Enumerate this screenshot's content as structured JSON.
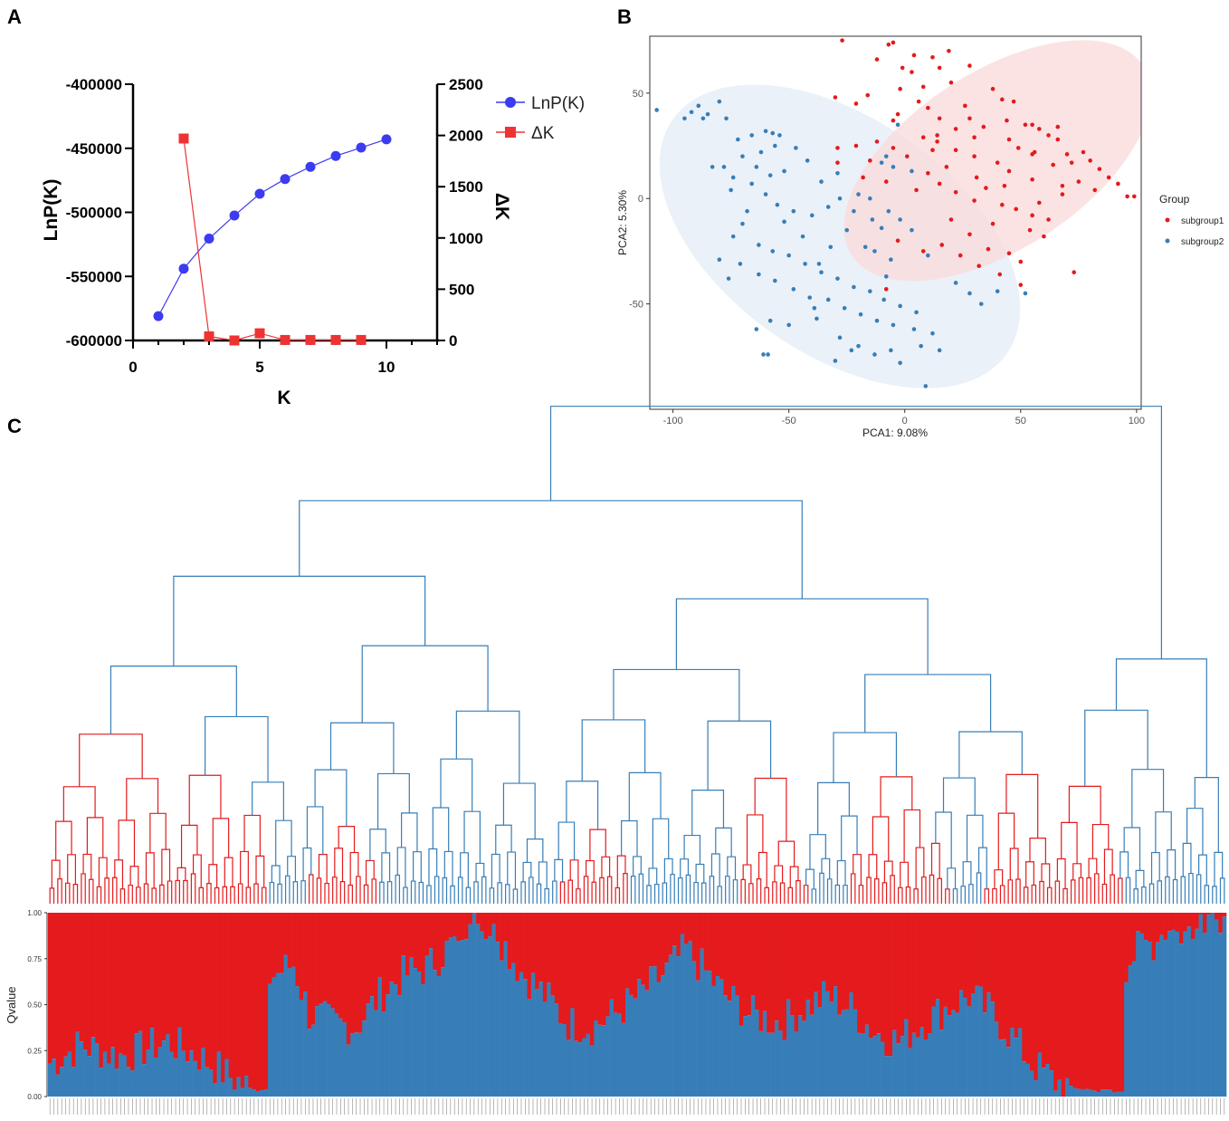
{
  "panels": {
    "a": "A",
    "b": "B",
    "c": "C"
  },
  "colors": {
    "lnp": "#3b3bf0",
    "dk": "#ee3333",
    "red": "#e41a1c",
    "blue": "#377eb8",
    "ellipse_red": "#fadadb",
    "ellipse_blue": "#e3ecf5"
  },
  "chart_data": [
    {
      "id": "panel-a",
      "type": "line",
      "xlabel": "K",
      "ylabel_left": "LnP(K)",
      "ylabel_right": "ΔK",
      "xlim": [
        0,
        12
      ],
      "xticks": [
        0,
        5,
        10
      ],
      "ylim_left": [
        -600000,
        -400000
      ],
      "yticks_left": [
        -400000,
        -450000,
        -500000,
        -550000,
        -600000
      ],
      "ylim_right": [
        0,
        2500
      ],
      "yticks_right": [
        2500,
        2000,
        1500,
        1000,
        500,
        0
      ],
      "series": [
        {
          "name": "LnP(K)",
          "axis": "left",
          "marker": "circle",
          "x": [
            1,
            2,
            3,
            4,
            5,
            6,
            7,
            8,
            9,
            10
          ],
          "values": [
            -581000,
            -544000,
            -520500,
            -502500,
            -485500,
            -474000,
            -464500,
            -456000,
            -449500,
            -443000
          ]
        },
        {
          "name": "ΔK",
          "axis": "right",
          "marker": "square",
          "x": [
            2,
            3,
            4,
            5,
            6,
            7,
            8,
            9
          ],
          "values": [
            1970,
            40,
            0,
            70,
            5,
            5,
            5,
            5
          ]
        }
      ]
    },
    {
      "id": "panel-b",
      "type": "scatter",
      "xlabel": "PCA1: 9.08%",
      "ylabel": "PCA2: 5.30%",
      "xlim": [
        -110,
        102
      ],
      "ylim": [
        -100,
        77
      ],
      "xticks": [
        -100,
        -50,
        0,
        50,
        100
      ],
      "yticks": [
        50,
        0,
        -50
      ],
      "legend_title": "Group",
      "legend": [
        "subgroup1",
        "subgroup2"
      ],
      "groups": [
        {
          "name": "subgroup1",
          "color": "#e41a1c",
          "ellipse": {
            "cx": 40,
            "cy": 18,
            "rx": 75,
            "ry": 42,
            "angle_deg": 33
          },
          "points": [
            [
              -27,
              75
            ],
            [
              -7,
              73
            ],
            [
              -5,
              74
            ],
            [
              4,
              68
            ],
            [
              12,
              67
            ],
            [
              19,
              70
            ],
            [
              28,
              63
            ],
            [
              15,
              62
            ],
            [
              -1,
              62
            ],
            [
              3,
              60
            ],
            [
              8,
              53
            ],
            [
              20,
              55
            ],
            [
              -12,
              66
            ],
            [
              38,
              52
            ],
            [
              42,
              47
            ],
            [
              47,
              46
            ],
            [
              26,
              44
            ],
            [
              10,
              43
            ],
            [
              -16,
              49
            ],
            [
              -21,
              45
            ],
            [
              -30,
              48
            ],
            [
              -3,
              40
            ],
            [
              15,
              38
            ],
            [
              22,
              33
            ],
            [
              34,
              34
            ],
            [
              -5,
              37
            ],
            [
              8,
              29
            ],
            [
              14,
              27
            ],
            [
              30,
              29
            ],
            [
              45,
              28
            ],
            [
              52,
              35
            ],
            [
              55,
              35
            ],
            [
              58,
              33
            ],
            [
              62,
              30
            ],
            [
              66,
              28
            ],
            [
              49,
              24
            ],
            [
              55,
              21
            ],
            [
              70,
              21
            ],
            [
              72,
              17
            ],
            [
              80,
              18
            ],
            [
              84,
              14
            ],
            [
              88,
              10
            ],
            [
              96,
              1
            ],
            [
              99,
              1
            ],
            [
              75,
              8
            ],
            [
              68,
              6
            ],
            [
              55,
              9
            ],
            [
              45,
              13
            ],
            [
              40,
              17
            ],
            [
              30,
              20
            ],
            [
              22,
              23
            ],
            [
              12,
              23
            ],
            [
              1,
              20
            ],
            [
              -5,
              24
            ],
            [
              -12,
              27
            ],
            [
              -21,
              25
            ],
            [
              -29,
              17
            ],
            [
              -18,
              10
            ],
            [
              -8,
              8
            ],
            [
              5,
              4
            ],
            [
              15,
              7
            ],
            [
              22,
              3
            ],
            [
              30,
              -1
            ],
            [
              35,
              5
            ],
            [
              42,
              -3
            ],
            [
              48,
              -5
            ],
            [
              55,
              -8
            ],
            [
              62,
              -10
            ],
            [
              38,
              -12
            ],
            [
              28,
              -17
            ],
            [
              16,
              -22
            ],
            [
              8,
              -25
            ],
            [
              -3,
              -20
            ],
            [
              24,
              -27
            ],
            [
              32,
              -32
            ],
            [
              41,
              -36
            ],
            [
              50,
              -41
            ],
            [
              73,
              -35
            ],
            [
              45,
              -26
            ],
            [
              60,
              -18
            ],
            [
              54,
              -15
            ],
            [
              -8,
              -43
            ],
            [
              -29,
              24
            ],
            [
              14,
              30
            ],
            [
              28,
              38
            ],
            [
              18,
              15
            ],
            [
              10,
              12
            ],
            [
              56,
              22
            ],
            [
              64,
              16
            ],
            [
              82,
              4
            ],
            [
              92,
              7
            ],
            [
              50,
              -30
            ],
            [
              36,
              -24
            ],
            [
              20,
              -10
            ],
            [
              -15,
              18
            ],
            [
              6,
              46
            ],
            [
              31,
              10
            ],
            [
              43,
              6
            ],
            [
              58,
              -2
            ],
            [
              68,
              2
            ],
            [
              44,
              37
            ],
            [
              66,
              34
            ],
            [
              77,
              22
            ],
            [
              -2,
              52
            ]
          ]
        },
        {
          "name": "subgroup2",
          "color": "#377eb8",
          "ellipse": {
            "cx": -28,
            "cy": -18,
            "rx": 88,
            "ry": 56,
            "angle_deg": -35
          },
          "points": [
            [
              -107,
              42
            ],
            [
              -95,
              38
            ],
            [
              -92,
              41
            ],
            [
              -89,
              44
            ],
            [
              -85,
              40
            ],
            [
              -80,
              46
            ],
            [
              -77,
              38
            ],
            [
              -87,
              38
            ],
            [
              -72,
              28
            ],
            [
              -66,
              30
            ],
            [
              -60,
              32
            ],
            [
              -57,
              31
            ],
            [
              -54,
              30
            ],
            [
              -56,
              25
            ],
            [
              -62,
              22
            ],
            [
              -70,
              20
            ],
            [
              -64,
              15
            ],
            [
              -58,
              11
            ],
            [
              -52,
              13
            ],
            [
              -74,
              10
            ],
            [
              -78,
              15
            ],
            [
              -83,
              15
            ],
            [
              -75,
              4
            ],
            [
              -66,
              7
            ],
            [
              -60,
              2
            ],
            [
              -55,
              -3
            ],
            [
              -48,
              -6
            ],
            [
              -40,
              -8
            ],
            [
              -33,
              -4
            ],
            [
              -28,
              0
            ],
            [
              -22,
              -6
            ],
            [
              -14,
              -10
            ],
            [
              -7,
              -6
            ],
            [
              -2,
              -10
            ],
            [
              3,
              -15
            ],
            [
              -68,
              -6
            ],
            [
              -74,
              -18
            ],
            [
              -63,
              -22
            ],
            [
              -57,
              -25
            ],
            [
              -50,
              -27
            ],
            [
              -43,
              -31
            ],
            [
              -36,
              -35
            ],
            [
              -29,
              -38
            ],
            [
              -22,
              -42
            ],
            [
              -15,
              -44
            ],
            [
              -9,
              -48
            ],
            [
              -2,
              -51
            ],
            [
              5,
              -54
            ],
            [
              -71,
              -31
            ],
            [
              -76,
              -38
            ],
            [
              -63,
              -36
            ],
            [
              -56,
              -39
            ],
            [
              -48,
              -43
            ],
            [
              -41,
              -47
            ],
            [
              -33,
              -48
            ],
            [
              -26,
              -52
            ],
            [
              -19,
              -55
            ],
            [
              -12,
              -58
            ],
            [
              -5,
              -60
            ],
            [
              4,
              -62
            ],
            [
              12,
              -64
            ],
            [
              -64,
              -62
            ],
            [
              -58,
              -58
            ],
            [
              -50,
              -60
            ],
            [
              -39,
              -52
            ],
            [
              -28,
              -66
            ],
            [
              -20,
              -70
            ],
            [
              -13,
              -74
            ],
            [
              -6,
              -72
            ],
            [
              7,
              -70
            ],
            [
              15,
              -72
            ],
            [
              -61,
              -74
            ],
            [
              -59,
              -74
            ],
            [
              -30,
              -77
            ],
            [
              -23,
              -72
            ],
            [
              9,
              -89
            ],
            [
              -2,
              -78
            ],
            [
              -38,
              -57
            ],
            [
              -8,
              -37
            ],
            [
              10,
              -27
            ],
            [
              22,
              -40
            ],
            [
              28,
              -45
            ],
            [
              33,
              -50
            ],
            [
              40,
              -44
            ],
            [
              52,
              -45
            ],
            [
              -6,
              -29
            ],
            [
              -13,
              -25
            ],
            [
              -17,
              -23
            ],
            [
              -32,
              -23
            ],
            [
              -44,
              -18
            ],
            [
              -47,
              24
            ],
            [
              -42,
              18
            ],
            [
              -36,
              8
            ],
            [
              -29,
              12
            ],
            [
              -10,
              17
            ],
            [
              -5,
              15
            ],
            [
              3,
              13
            ],
            [
              -3,
              35
            ],
            [
              -20,
              2
            ],
            [
              -15,
              0
            ],
            [
              -70,
              -12
            ],
            [
              -80,
              -29
            ],
            [
              -25,
              -15
            ],
            [
              -10,
              -14
            ],
            [
              -37,
              -31
            ],
            [
              -52,
              -11
            ],
            [
              -8,
              20
            ]
          ]
        }
      ]
    },
    {
      "id": "panel-c",
      "type": "bar",
      "subtype": "stacked-qvalue-with-dendrogram",
      "ylabel": "Qvalue",
      "ylim": [
        0,
        1
      ],
      "yticks": [
        "1.00",
        "0.75",
        "0.50",
        "0.25",
        "0.00"
      ],
      "series_colors": {
        "subgroup1": "#e41a1c",
        "subgroup2": "#377eb8"
      },
      "n_samples": 300,
      "blue_fraction_anchors": [
        [
          0,
          0.18
        ],
        [
          8,
          0.28
        ],
        [
          18,
          0.22
        ],
        [
          30,
          0.3
        ],
        [
          38,
          0.22
        ],
        [
          45,
          0.12
        ],
        [
          52,
          0.03
        ],
        [
          55,
          0.02
        ],
        [
          56,
          0.65
        ],
        [
          62,
          0.72
        ],
        [
          66,
          0.45
        ],
        [
          72,
          0.4
        ],
        [
          78,
          0.38
        ],
        [
          84,
          0.55
        ],
        [
          90,
          0.66
        ],
        [
          96,
          0.7
        ],
        [
          102,
          0.82
        ],
        [
          108,
          0.92
        ],
        [
          115,
          0.85
        ],
        [
          120,
          0.68
        ],
        [
          126,
          0.55
        ],
        [
          132,
          0.4
        ],
        [
          138,
          0.38
        ],
        [
          144,
          0.45
        ],
        [
          150,
          0.55
        ],
        [
          156,
          0.66
        ],
        [
          162,
          0.8
        ],
        [
          166,
          0.7
        ],
        [
          172,
          0.55
        ],
        [
          178,
          0.45
        ],
        [
          186,
          0.4
        ],
        [
          192,
          0.48
        ],
        [
          198,
          0.55
        ],
        [
          204,
          0.48
        ],
        [
          210,
          0.35
        ],
        [
          216,
          0.3
        ],
        [
          222,
          0.4
        ],
        [
          228,
          0.48
        ],
        [
          234,
          0.55
        ],
        [
          240,
          0.45
        ],
        [
          246,
          0.3
        ],
        [
          250,
          0.18
        ],
        [
          256,
          0.08
        ],
        [
          262,
          0.03
        ],
        [
          268,
          0.02
        ],
        [
          273,
          0.02
        ],
        [
          274,
          0.72
        ],
        [
          278,
          0.82
        ],
        [
          284,
          0.86
        ],
        [
          290,
          0.88
        ],
        [
          296,
          0.92
        ],
        [
          300,
          0.94
        ]
      ]
    }
  ]
}
